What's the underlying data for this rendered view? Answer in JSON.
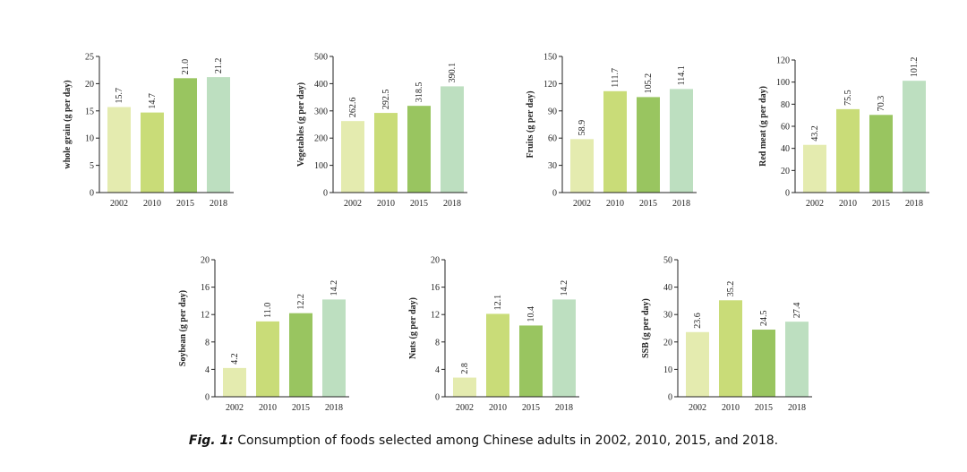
{
  "caption": {
    "fig_tag": "Fig. 1:",
    "text": "Consumption of foods selected among Chinese adults in 2002, 2010, 2015, and 2018."
  },
  "colors": [
    "#e4ebaf",
    "#c9dc78",
    "#99c560",
    "#bddfc0"
  ],
  "chart_data": [
    {
      "type": "bar",
      "ylabel": "whole grain (g per day)",
      "categories": [
        "2002",
        "2010",
        "2015",
        "2018"
      ],
      "values": [
        15.7,
        14.7,
        21.0,
        21.2
      ],
      "value_labels": [
        "15.7",
        "14.7",
        "21.0",
        "21.2"
      ],
      "ylim": [
        0,
        25
      ],
      "yticks": [
        0,
        5,
        10,
        15,
        20,
        25
      ]
    },
    {
      "type": "bar",
      "ylabel": "Vegetables (g per day)",
      "categories": [
        "2002",
        "2010",
        "2015",
        "2018"
      ],
      "values": [
        262.6,
        292.5,
        318.5,
        390.1
      ],
      "value_labels": [
        "262.6",
        "292.5",
        "318.5",
        "390.1"
      ],
      "ylim": [
        0,
        500
      ],
      "yticks": [
        0,
        100,
        200,
        300,
        400,
        500
      ]
    },
    {
      "type": "bar",
      "ylabel": "Fruits (g per day)",
      "categories": [
        "2002",
        "2010",
        "2015",
        "2018"
      ],
      "values": [
        58.9,
        111.7,
        105.2,
        114.1
      ],
      "value_labels": [
        "58.9",
        "111.7",
        "105.2",
        "114.1"
      ],
      "ylim": [
        0,
        150
      ],
      "yticks": [
        0,
        30,
        60,
        90,
        120,
        150
      ]
    },
    {
      "type": "bar",
      "ylabel": "Red meat (g per day)",
      "categories": [
        "2002",
        "2010",
        "2015",
        "2018"
      ],
      "values": [
        43.2,
        75.5,
        70.3,
        101.2
      ],
      "value_labels": [
        "43.2",
        "75.5",
        "70.3",
        "101.2"
      ],
      "ylim": [
        0,
        120
      ],
      "yticks": [
        0,
        20,
        40,
        60,
        80,
        100,
        120
      ]
    },
    {
      "type": "bar",
      "ylabel": "Soybean (g per day)",
      "categories": [
        "2002",
        "2010",
        "2015",
        "2018"
      ],
      "values": [
        4.2,
        11.0,
        12.2,
        14.2
      ],
      "value_labels": [
        "4.2",
        "11.0",
        "12.2",
        "14.2"
      ],
      "ylim": [
        0,
        20
      ],
      "yticks": [
        0,
        4,
        8,
        12,
        16,
        20
      ]
    },
    {
      "type": "bar",
      "ylabel": "Nuts (g per day)",
      "categories": [
        "2002",
        "2010",
        "2015",
        "2018"
      ],
      "values": [
        2.8,
        12.1,
        10.4,
        14.2
      ],
      "value_labels": [
        "2.8",
        "12.1",
        "10.4",
        "14.2"
      ],
      "ylim": [
        0,
        20
      ],
      "yticks": [
        0,
        4,
        8,
        12,
        16,
        20
      ]
    },
    {
      "type": "bar",
      "ylabel": "SSB (g per day)",
      "categories": [
        "2002",
        "2010",
        "2015",
        "2018"
      ],
      "values": [
        23.6,
        35.2,
        24.5,
        27.4
      ],
      "value_labels": [
        "23.6",
        "35.2",
        "24.5",
        "27.4"
      ],
      "ylim": [
        0,
        50
      ],
      "yticks": [
        0,
        10,
        20,
        30,
        40,
        50
      ]
    }
  ]
}
